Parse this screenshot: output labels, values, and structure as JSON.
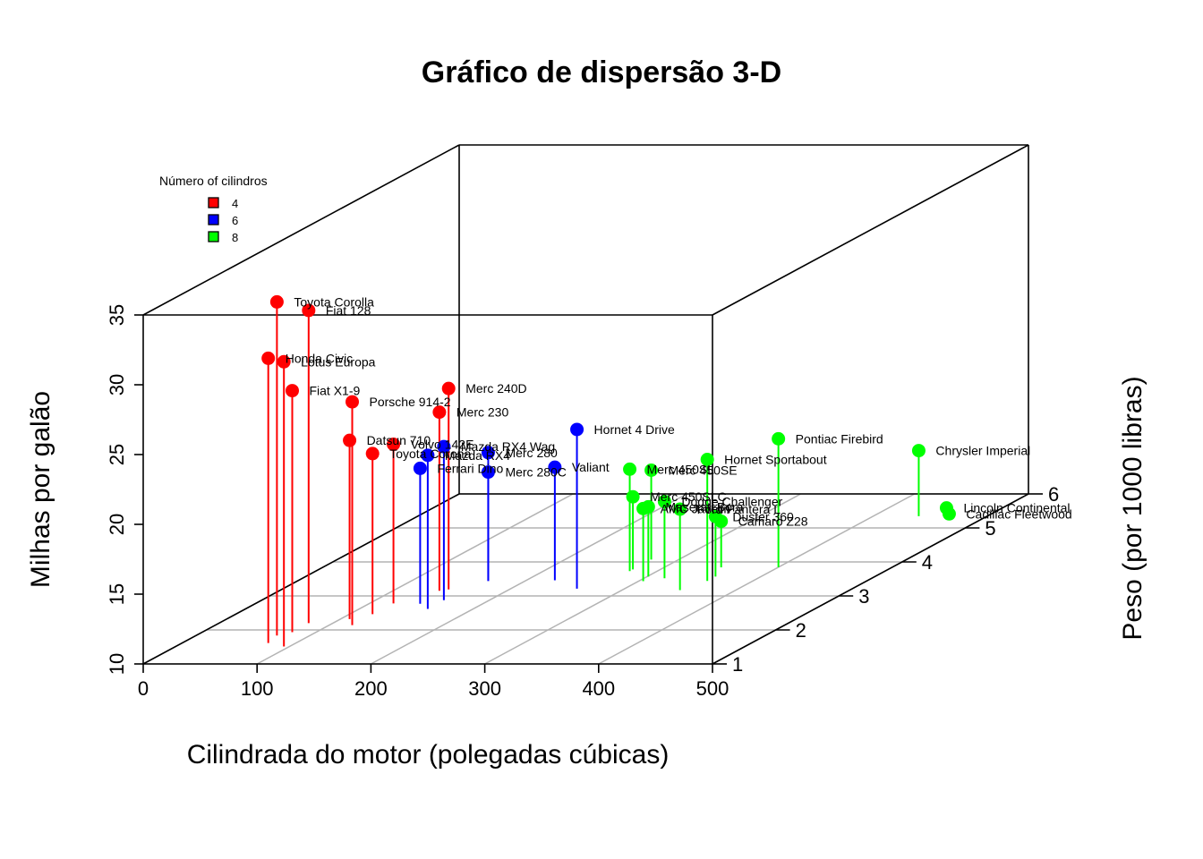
{
  "chart_data": {
    "type": "scatter3d",
    "title": "Gráfico de dispersão 3-D",
    "xlabel": "Cilindrada do motor (polegadas cúbicas)",
    "ylabel": "Peso (por 1000 libras)",
    "zlabel": "Milhas por galão",
    "xlim": [
      0,
      500
    ],
    "ylim": [
      1,
      6
    ],
    "zlim": [
      10,
      35
    ],
    "xticks": [
      "0",
      "100",
      "200",
      "300",
      "400",
      "500"
    ],
    "yticks": [
      "1",
      "2",
      "3",
      "4",
      "5",
      "6"
    ],
    "zticks": [
      "10",
      "15",
      "20",
      "25",
      "30",
      "35"
    ],
    "grid": true,
    "legend": {
      "title": "Número of cilindros",
      "position": "top-left",
      "items": [
        {
          "label": "4",
          "color": "#ff0000"
        },
        {
          "label": "6",
          "color": "#0000ff"
        },
        {
          "label": "8",
          "color": "#00ff00"
        }
      ]
    },
    "series": [
      {
        "name": "4",
        "color": "#ff0000",
        "points": [
          {
            "label": "Datsun 710",
            "x": 108,
            "y": 2.32,
            "z": 22.8
          },
          {
            "label": "Merc 240D",
            "x": 146.7,
            "y": 3.19,
            "z": 24.4
          },
          {
            "label": "Merc 230",
            "x": 140.8,
            "y": 3.15,
            "z": 22.8
          },
          {
            "label": "Fiat 128",
            "x": 78.7,
            "y": 2.2,
            "z": 32.4
          },
          {
            "label": "Honda Civic",
            "x": 75.7,
            "y": 1.615,
            "z": 30.4
          },
          {
            "label": "Toyota Corolla",
            "x": 71.1,
            "y": 1.835,
            "z": 33.9
          },
          {
            "label": "Toyota Corona",
            "x": 120.1,
            "y": 2.465,
            "z": 21.5
          },
          {
            "label": "Fiat X1-9",
            "x": 79,
            "y": 1.935,
            "z": 27.3
          },
          {
            "label": "Porsche 914-2",
            "x": 120.3,
            "y": 2.14,
            "z": 26.0
          },
          {
            "label": "Lotus Europa",
            "x": 95.1,
            "y": 1.513,
            "z": 30.4
          },
          {
            "label": "Volvo 142E",
            "x": 121,
            "y": 2.78,
            "z": 21.4
          }
        ]
      },
      {
        "name": "6",
        "color": "#0000ff",
        "points": [
          {
            "label": "Mazda RX4",
            "x": 160,
            "y": 2.62,
            "z": 21.0
          },
          {
            "label": "Mazda RX4 Wag",
            "x": 160,
            "y": 2.875,
            "z": 21.0
          },
          {
            "label": "Hornet 4 Drive",
            "x": 258,
            "y": 3.215,
            "z": 21.4
          },
          {
            "label": "Valiant",
            "x": 225,
            "y": 3.46,
            "z": 18.1
          },
          {
            "label": "Merc 280",
            "x": 167.6,
            "y": 3.44,
            "z": 19.2
          },
          {
            "label": "Merc 280C",
            "x": 167.6,
            "y": 3.44,
            "z": 17.8
          },
          {
            "label": "Ferrari Dino",
            "x": 145,
            "y": 2.77,
            "z": 19.7
          }
        ]
      },
      {
        "name": "8",
        "color": "#00ff00",
        "points": [
          {
            "label": "Hornet Sportabout",
            "x": 360,
            "y": 3.44,
            "z": 18.7
          },
          {
            "label": "Duster 360",
            "x": 360,
            "y": 3.57,
            "z": 14.3
          },
          {
            "label": "Merc 450SE",
            "x": 275.8,
            "y": 4.07,
            "z": 16.4
          },
          {
            "label": "Merc 450SL",
            "x": 275.8,
            "y": 3.73,
            "z": 17.3
          },
          {
            "label": "Merc 450SLC",
            "x": 275.8,
            "y": 3.78,
            "z": 15.2
          },
          {
            "label": "Cadillac Fleetwood",
            "x": 472,
            "y": 5.25,
            "z": 10.4
          },
          {
            "label": "Lincoln Continental",
            "x": 460,
            "y": 5.424,
            "z": 10.4
          },
          {
            "label": "Chrysler Imperial",
            "x": 440,
            "y": 5.345,
            "z": 14.7
          },
          {
            "label": "Dodge Challenger",
            "x": 318,
            "y": 3.52,
            "z": 15.5
          },
          {
            "label": "AMC Javelin",
            "x": 304,
            "y": 3.435,
            "z": 15.2
          },
          {
            "label": "Camaro Z28",
            "x": 350,
            "y": 3.84,
            "z": 13.3
          },
          {
            "label": "Pontiac Firebird",
            "x": 400,
            "y": 3.845,
            "z": 19.2
          },
          {
            "label": "Ford Pantera L",
            "x": 351,
            "y": 3.17,
            "z": 15.8
          },
          {
            "label": "Maserati Bora",
            "x": 301,
            "y": 3.57,
            "z": 15.0
          }
        ]
      }
    ]
  }
}
